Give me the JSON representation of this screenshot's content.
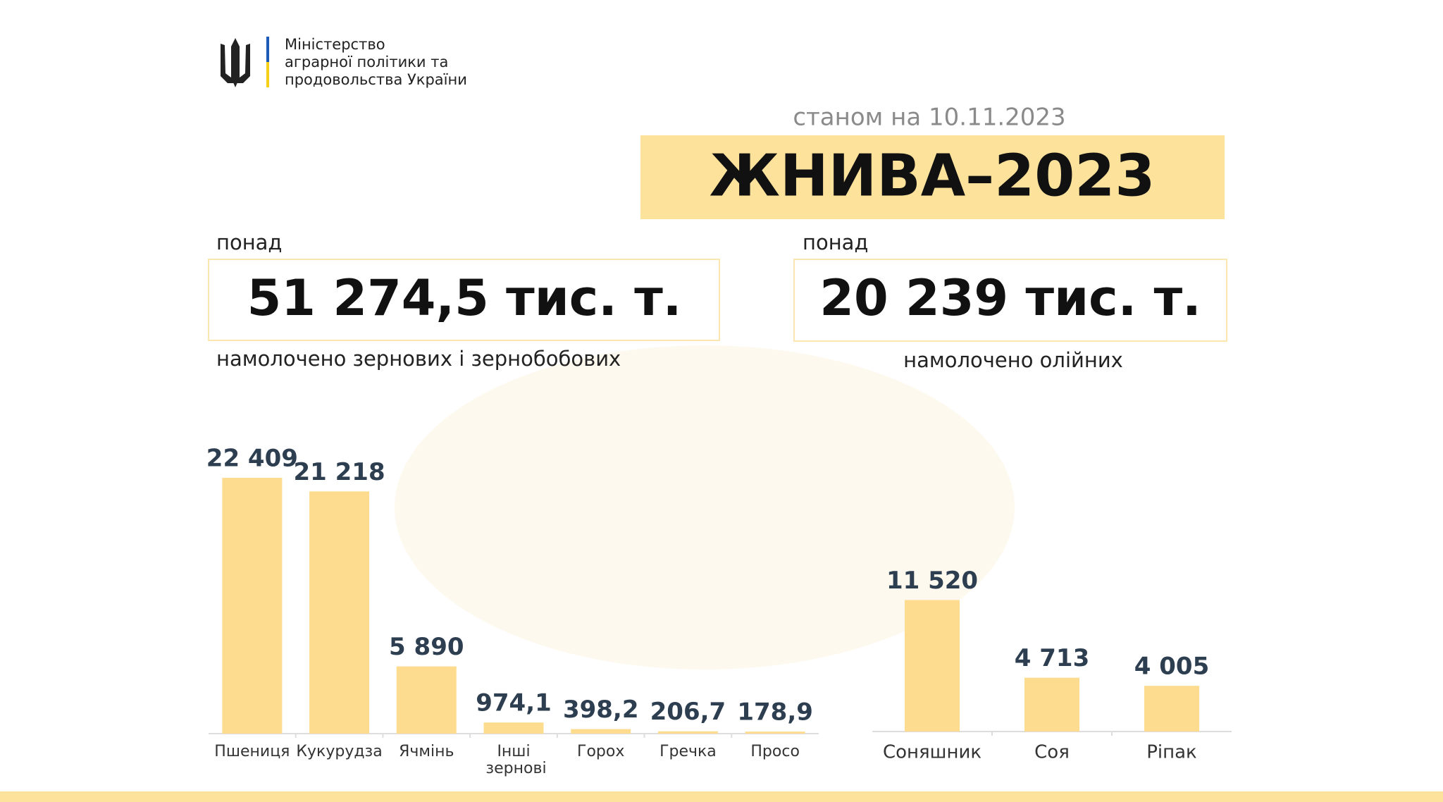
{
  "header": {
    "ministry": [
      "Міністерство",
      "аграрної політики та",
      "продовольства України"
    ],
    "date": "станом на 10.11.2023",
    "title": "ЖНИВА–2023"
  },
  "summaries": [
    {
      "prefix": "понад",
      "amount": "51 274,5 тис. т.",
      "caption": "намолочено зернових і зернобобових"
    },
    {
      "prefix": "понад",
      "amount": "20 239 тис. т.",
      "caption": "намолочено олійних"
    }
  ],
  "chart_data": [
    {
      "type": "bar",
      "categories": [
        "Пшениця",
        "Кукурудза",
        "Ячмінь",
        "Інші зернові",
        "Горох",
        "Гречка",
        "Просо"
      ],
      "values": [
        22409,
        21218,
        5890,
        974.1,
        398.2,
        206.7,
        178.9
      ],
      "value_labels": [
        "22 409",
        "21 218",
        "5 890",
        "974,1",
        "398,2",
        "206,7",
        "178,9"
      ],
      "color": "#fddc8f"
    },
    {
      "type": "bar",
      "categories": [
        "Соняшник",
        "Соя",
        "Ріпак"
      ],
      "values": [
        11520,
        4713,
        4005
      ],
      "value_labels": [
        "11 520",
        "4 713",
        "4 005"
      ],
      "color": "#fddc8f"
    }
  ]
}
